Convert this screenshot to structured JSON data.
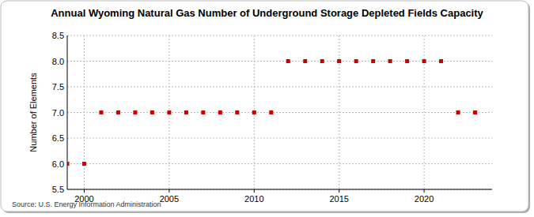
{
  "chart_data": {
    "type": "scatter",
    "title": "Annual Wyoming Natural Gas Number of Underground Storage Depleted Fields Capacity",
    "y_label": "Number of Elements",
    "source": "Source: U.S. Energy Information Administration",
    "x": [
      1999,
      2000,
      2001,
      2002,
      2003,
      2004,
      2005,
      2006,
      2007,
      2008,
      2009,
      2010,
      2011,
      2012,
      2013,
      2014,
      2015,
      2016,
      2017,
      2018,
      2019,
      2020,
      2021,
      2022,
      2023
    ],
    "values": [
      6,
      6,
      7,
      7,
      7,
      7,
      7,
      7,
      7,
      7,
      7,
      7,
      7,
      8,
      8,
      8,
      8,
      8,
      8,
      8,
      8,
      8,
      8,
      7,
      7
    ],
    "color": "#cc0000",
    "marker": "square",
    "xlim": [
      1999,
      2024
    ],
    "xticks": [
      2000,
      2005,
      2010,
      2015,
      2020
    ],
    "ylim": [
      5.5,
      8.5
    ],
    "yticks": [
      5.5,
      {
        "value": 6,
        "label": "6.0"
      },
      6.5,
      {
        "value": 7,
        "label": "7.0"
      },
      7.5,
      {
        "value": 8,
        "label": "8.0"
      },
      8.5
    ],
    "grid": true
  }
}
